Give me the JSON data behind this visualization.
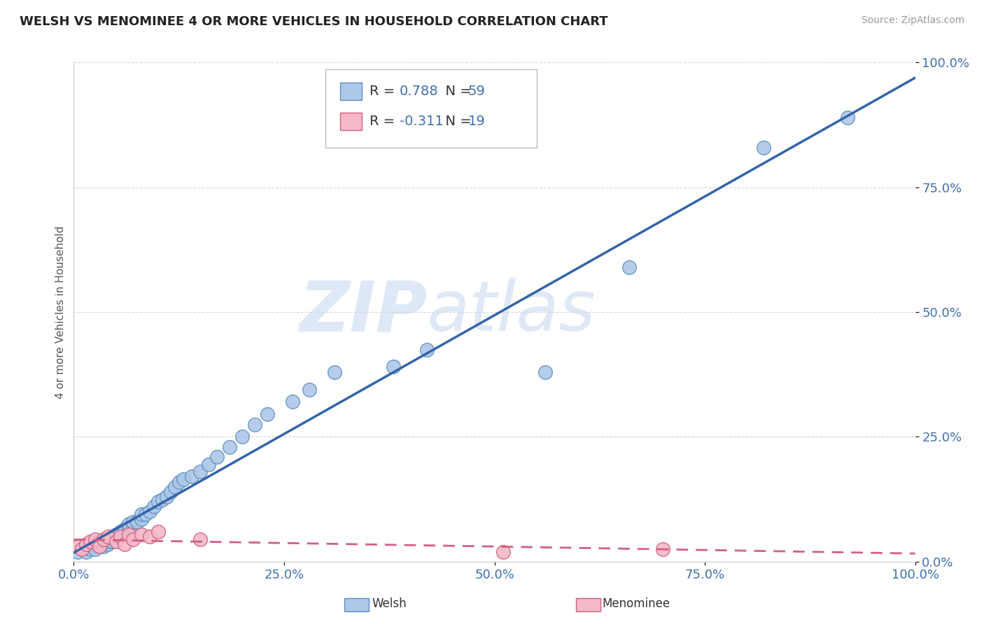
{
  "title": "WELSH VS MENOMINEE 4 OR MORE VEHICLES IN HOUSEHOLD CORRELATION CHART",
  "source": "Source: ZipAtlas.com",
  "ylabel": "4 or more Vehicles in Household",
  "xlim": [
    0.0,
    1.0
  ],
  "ylim": [
    0.0,
    1.0
  ],
  "xtick_labels": [
    "0.0%",
    "25.0%",
    "50.0%",
    "75.0%",
    "100.0%"
  ],
  "xtick_positions": [
    0.0,
    0.25,
    0.5,
    0.75,
    1.0
  ],
  "ytick_labels": [
    "100.0%",
    "75.0%",
    "50.0%",
    "25.0%",
    "0.0%"
  ],
  "ytick_positions": [
    1.0,
    0.75,
    0.5,
    0.25,
    0.0
  ],
  "welsh_color": "#adc8e8",
  "welsh_edge_color": "#6090c0",
  "menominee_color": "#f5b8c8",
  "menominee_edge_color": "#d06080",
  "trend_welsh_color": "#3464a8",
  "trend_menominee_color": "#d06080",
  "R_welsh": 0.788,
  "N_welsh": 59,
  "R_menominee": -0.311,
  "N_menominee": 19,
  "legend_label_welsh": "Welsh",
  "legend_label_menominee": "Menominee",
  "watermark_zip": "ZIP",
  "watermark_atlas": "atlas",
  "background_color": "#ffffff",
  "tick_color": "#4070b0",
  "grid_color": "#d8d8d8",
  "welsh_x": [
    0.005,
    0.01,
    0.015,
    0.02,
    0.02,
    0.025,
    0.025,
    0.03,
    0.03,
    0.03,
    0.035,
    0.035,
    0.035,
    0.04,
    0.04,
    0.04,
    0.045,
    0.045,
    0.045,
    0.05,
    0.05,
    0.05,
    0.055,
    0.055,
    0.06,
    0.065,
    0.065,
    0.07,
    0.07,
    0.075,
    0.08,
    0.08,
    0.085,
    0.09,
    0.095,
    0.1,
    0.105,
    0.11,
    0.115,
    0.12,
    0.125,
    0.13,
    0.14,
    0.15,
    0.16,
    0.17,
    0.185,
    0.2,
    0.215,
    0.23,
    0.26,
    0.28,
    0.31,
    0.38,
    0.42,
    0.56,
    0.66,
    0.82,
    0.92
  ],
  "welsh_y": [
    0.02,
    0.025,
    0.02,
    0.03,
    0.025,
    0.03,
    0.025,
    0.035,
    0.03,
    0.04,
    0.035,
    0.03,
    0.04,
    0.035,
    0.045,
    0.04,
    0.045,
    0.04,
    0.05,
    0.05,
    0.045,
    0.055,
    0.055,
    0.06,
    0.065,
    0.065,
    0.075,
    0.07,
    0.08,
    0.08,
    0.085,
    0.095,
    0.095,
    0.1,
    0.11,
    0.12,
    0.125,
    0.13,
    0.14,
    0.15,
    0.16,
    0.165,
    0.17,
    0.18,
    0.195,
    0.21,
    0.23,
    0.25,
    0.275,
    0.295,
    0.32,
    0.345,
    0.38,
    0.39,
    0.425,
    0.38,
    0.59,
    0.83,
    0.89
  ],
  "menominee_x": [
    0.005,
    0.01,
    0.015,
    0.02,
    0.025,
    0.03,
    0.035,
    0.04,
    0.05,
    0.055,
    0.06,
    0.065,
    0.07,
    0.08,
    0.09,
    0.1,
    0.15,
    0.51,
    0.7
  ],
  "menominee_y": [
    0.03,
    0.025,
    0.035,
    0.04,
    0.045,
    0.03,
    0.045,
    0.05,
    0.04,
    0.05,
    0.035,
    0.055,
    0.045,
    0.055,
    0.05,
    0.06,
    0.045,
    0.02,
    0.025
  ]
}
